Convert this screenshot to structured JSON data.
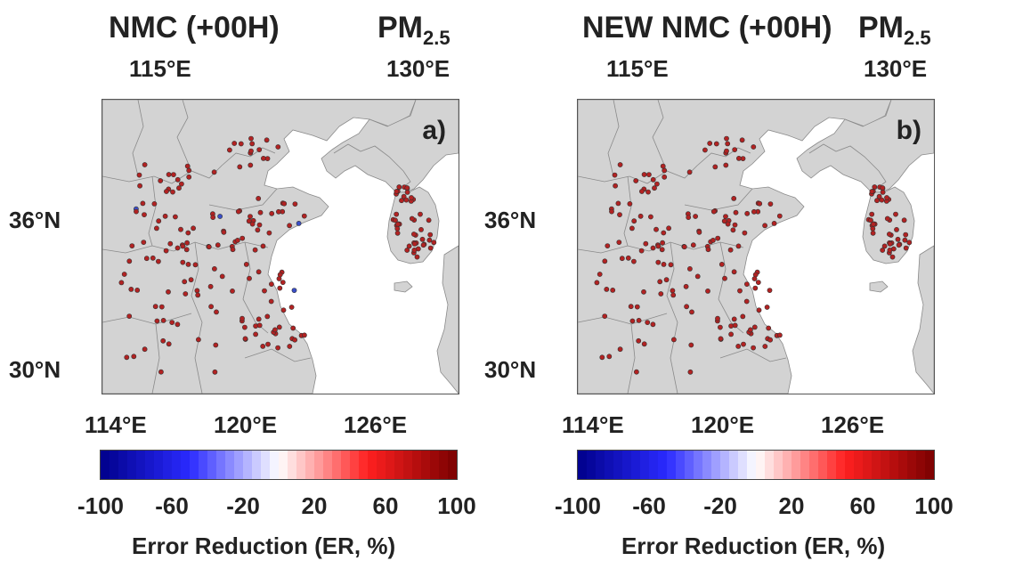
{
  "panels": [
    {
      "title": "NMC (+00H)",
      "species": "PM",
      "species_sub": "2.5",
      "panel_label": "a)"
    },
    {
      "title": "NEW NMC (+00H)",
      "species": "PM",
      "species_sub": "2.5",
      "panel_label": "b)"
    }
  ],
  "axes": {
    "lon_top": [
      "115°E",
      "130°E"
    ],
    "lon_bottom": [
      "114°E",
      "120°E",
      "126°E"
    ],
    "lat": [
      "36°N",
      "30°N"
    ]
  },
  "colorbar": {
    "ticks": [
      "-100",
      "-60",
      "-20",
      "20",
      "60",
      "100"
    ],
    "title": "Error Reduction (ER, %)",
    "range": [
      -100,
      100
    ],
    "colors": {
      "low": "#00008b",
      "mid_low": "#2a2aff",
      "center": "#ffffff",
      "mid_high": "#ff2020",
      "high": "#7a0000"
    }
  },
  "colors": {
    "land": "#d3d3d3",
    "sea": "#ffffff",
    "border": "#8a8a8a",
    "station_fill": "#b22222",
    "station_outline": "#333333",
    "negative_station": "#3a4ec8"
  }
}
